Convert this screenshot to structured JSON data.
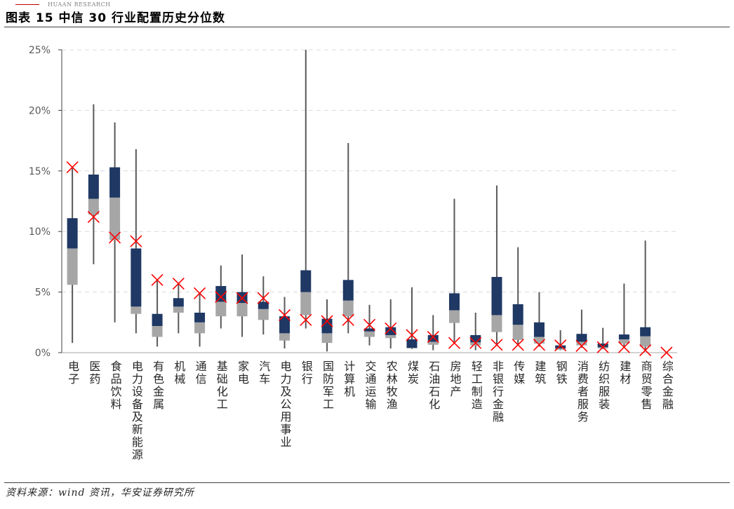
{
  "header": {
    "brand": "HUAAN RESEARCH"
  },
  "footer": {
    "source": "资料来源：wind 资讯，华安证券研究所"
  },
  "colors": {
    "brand_line": "#c00000",
    "upper_box": "#1f3864",
    "lower_box": "#a6a6a6",
    "whisker": "#595959",
    "marker": "#ff0000",
    "grid": "#d9d9d9",
    "axis": "#404040",
    "axis_x": "#a6a6a6"
  },
  "chart_data": {
    "type": "boxplot",
    "title": "图表 15 中信 30 行业配置历史分位数",
    "xlabel": "",
    "ylabel": "",
    "ylim": [
      0,
      25
    ],
    "yticks": [
      0,
      5,
      10,
      15,
      20,
      25
    ],
    "ytick_labels": [
      "0%",
      "5%",
      "10%",
      "15%",
      "20%",
      "25%"
    ],
    "grid": true,
    "categories": [
      "电子",
      "医药",
      "食品饮料",
      "电力设备及新能源",
      "有色金属",
      "机械",
      "通信",
      "基础化工",
      "家电",
      "汽车",
      "电力及公用事业",
      "银行",
      "国防军工",
      "计算机",
      "交通运输",
      "农林牧渔",
      "煤炭",
      "石油石化",
      "房地产",
      "轻工制造",
      "非银行金融",
      "传媒",
      "建筑",
      "钢铁",
      "消费者服务",
      "纺织服装",
      "建材",
      "商贸零售",
      "综合金融"
    ],
    "stats": {
      "min": [
        0.8,
        7.3,
        2.5,
        1.6,
        0.5,
        1.6,
        0.5,
        2.0,
        1.3,
        1.5,
        0.35,
        2.0,
        0.1,
        1.6,
        0.6,
        0.35,
        0.3,
        0.2,
        0.8,
        0.2,
        0.6,
        0.6,
        0.5,
        0.2,
        0.4,
        0.3,
        0.4,
        0.1,
        0
      ],
      "q1": [
        5.6,
        11.4,
        9.3,
        3.2,
        1.3,
        3.3,
        1.6,
        3.0,
        3.0,
        2.7,
        1.0,
        3.1,
        0.8,
        3.0,
        1.3,
        1.2,
        0.35,
        0.65,
        2.45,
        0.6,
        1.7,
        1.05,
        0.75,
        0.25,
        0.6,
        0.35,
        0.75,
        0.5,
        0
      ],
      "median": [
        8.6,
        12.7,
        12.8,
        3.8,
        2.2,
        3.8,
        2.5,
        4.2,
        4.1,
        3.6,
        1.6,
        5.0,
        1.6,
        4.3,
        1.75,
        1.45,
        0.4,
        0.9,
        3.5,
        0.85,
        3.1,
        2.3,
        1.3,
        0.35,
        0.9,
        0.45,
        1.1,
        1.35,
        0
      ],
      "q3": [
        11.1,
        14.7,
        15.3,
        8.6,
        3.2,
        4.5,
        3.3,
        5.5,
        5.0,
        4.2,
        3.0,
        6.8,
        2.8,
        6.0,
        2.0,
        2.1,
        1.1,
        1.45,
        4.9,
        1.45,
        6.25,
        4.0,
        2.5,
        0.6,
        1.55,
        0.75,
        1.5,
        2.1,
        0
      ],
      "max": [
        15.3,
        20.5,
        19.0,
        16.8,
        6.0,
        5.7,
        4.9,
        7.2,
        8.1,
        6.3,
        4.6,
        25.0,
        4.4,
        17.3,
        3.95,
        4.4,
        5.4,
        3.1,
        12.7,
        3.3,
        13.8,
        8.7,
        5.0,
        1.85,
        3.55,
        2.05,
        5.7,
        9.25,
        0
      ],
      "current": [
        15.3,
        11.2,
        9.5,
        9.2,
        6.0,
        5.7,
        4.9,
        4.6,
        4.5,
        4.5,
        3.1,
        2.7,
        2.6,
        2.7,
        2.3,
        2.0,
        1.45,
        1.3,
        0.8,
        0.8,
        0.65,
        0.65,
        0.65,
        0.6,
        0.55,
        0.45,
        0.45,
        0.2,
        0
      ]
    }
  }
}
